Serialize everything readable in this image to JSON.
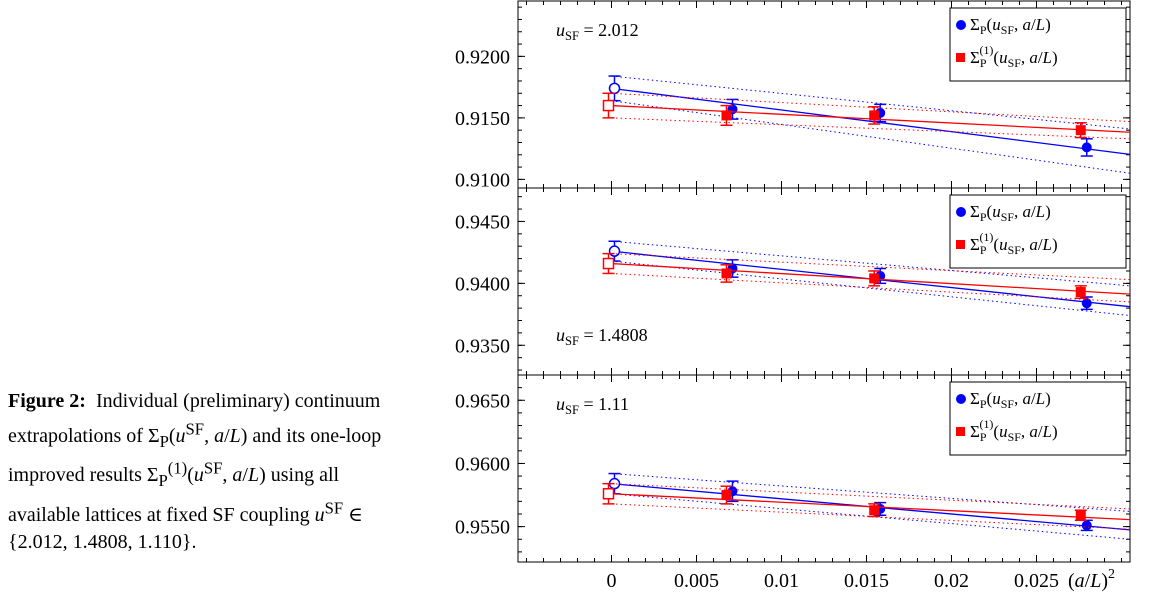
{
  "caption": {
    "label": "Figure 2:",
    "text": "Individual (preliminary) continuum extrapolations of Σ_P(u^SF, a/L) and its one-loop improved results Σ_P^(1)(u^SF, a/L) using all available lattices at fixed SF coupling u^SF ∈ {2.012, 1.4808, 1.110}."
  },
  "chart_data": [
    {
      "type": "scatter",
      "annotation": "u_SF = 2.012",
      "xlabel": "(a/L)^2",
      "xlim": [
        -0.0055,
        0.0305
      ],
      "ylim": [
        0.9093,
        0.9245
      ],
      "xticks": [
        "0",
        "0.005",
        "0.01",
        "0.015",
        "0.02",
        "0.025"
      ],
      "yticks": [
        "0.9100",
        "0.9150",
        "0.9200"
      ],
      "legend_position": "top-right",
      "series": [
        {
          "name": "Σ_P(u_SF, a/L)",
          "color": "#0000ff",
          "marker": "circle",
          "x": [
            0.00694,
            0.01563,
            0.02778
          ],
          "y": [
            0.9157,
            0.9154,
            0.9126
          ],
          "err": [
            0.0008,
            0.0007,
            0.0007
          ],
          "continuum": {
            "x": 0,
            "y": 0.9174,
            "err": 0.001
          },
          "fit": {
            "intercept": 0.9174,
            "slope": -0.176
          },
          "band": {
            "lower_end": 0.9105,
            "upper_end": 0.9141,
            "lower_start": 0.9164,
            "upper_start": 0.9184
          }
        },
        {
          "name": "Σ_P^(1)(u_SF, a/L)",
          "color": "#ff0000",
          "marker": "square",
          "x": [
            0.00694,
            0.01563,
            0.02778
          ],
          "y": [
            0.9152,
            0.9152,
            0.914
          ],
          "err": [
            0.0008,
            0.0007,
            0.0006
          ],
          "continuum": {
            "x": 0,
            "y": 0.916,
            "err": 0.001
          },
          "fit": {
            "intercept": 0.916,
            "slope": -0.071
          },
          "band": {
            "lower_end": 0.9133,
            "upper_end": 0.9147,
            "lower_start": 0.915,
            "upper_start": 0.917
          }
        }
      ]
    },
    {
      "type": "scatter",
      "annotation": "u_SF = 1.4808",
      "xlabel": "(a/L)^2",
      "xlim": [
        -0.0055,
        0.0305
      ],
      "ylim": [
        0.9326,
        0.9477
      ],
      "xticks": [
        "0",
        "0.005",
        "0.01",
        "0.015",
        "0.02",
        "0.025"
      ],
      "yticks": [
        "0.9350",
        "0.9400",
        "0.9450"
      ],
      "legend_position": "top-right",
      "series": [
        {
          "name": "Σ_P(u_SF, a/L)",
          "color": "#0000ff",
          "marker": "circle",
          "x": [
            0.00694,
            0.01563,
            0.02778
          ],
          "y": [
            0.9412,
            0.9406,
            0.9384
          ],
          "err": [
            0.0007,
            0.0006,
            0.0005
          ],
          "continuum": {
            "x": 0,
            "y": 0.9426,
            "err": 0.0008
          },
          "fit": {
            "intercept": 0.9426,
            "slope": -0.147
          },
          "band": {
            "lower_end": 0.9374,
            "upper_end": 0.9398,
            "lower_start": 0.9418,
            "upper_start": 0.9434
          }
        },
        {
          "name": "Σ_P^(1)(u_SF, a/L)",
          "color": "#ff0000",
          "marker": "square",
          "x": [
            0.00694,
            0.01563,
            0.02778
          ],
          "y": [
            0.9408,
            0.9404,
            0.9393
          ],
          "err": [
            0.0007,
            0.0006,
            0.0005
          ],
          "continuum": {
            "x": 0,
            "y": 0.9416,
            "err": 0.0008
          },
          "fit": {
            "intercept": 0.9416,
            "slope": -0.081
          },
          "band": {
            "lower_end": 0.9385,
            "upper_end": 0.9403,
            "lower_start": 0.9408,
            "upper_start": 0.9424
          }
        }
      ]
    },
    {
      "type": "scatter",
      "annotation": "u_SF = 1.11",
      "xlabel": "(a/L)^2",
      "xlim": [
        -0.0055,
        0.0305
      ],
      "ylim": [
        0.9522,
        0.967
      ],
      "xticks": [
        "0",
        "0.005",
        "0.01",
        "0.015",
        "0.02",
        "0.025"
      ],
      "yticks": [
        "0.9550",
        "0.9600",
        "0.9650"
      ],
      "legend_position": "top-right",
      "series": [
        {
          "name": "Σ_P(u_SF, a/L)",
          "color": "#0000ff",
          "marker": "circle",
          "x": [
            0.00694,
            0.01563,
            0.02778
          ],
          "y": [
            0.9578,
            0.9564,
            0.9551
          ],
          "err": [
            0.0008,
            0.0005,
            0.0004
          ],
          "continuum": {
            "x": 0,
            "y": 0.9584,
            "err": 0.0008
          },
          "fit": {
            "intercept": 0.9584,
            "slope": -0.12
          },
          "band": {
            "lower_end": 0.954,
            "upper_end": 0.9562,
            "lower_start": 0.9576,
            "upper_start": 0.9592
          }
        },
        {
          "name": "Σ_P^(1)(u_SF, a/L)",
          "color": "#ff0000",
          "marker": "square",
          "x": [
            0.00694,
            0.01563,
            0.02778
          ],
          "y": [
            0.9575,
            0.9563,
            0.9559
          ],
          "err": [
            0.0007,
            0.0005,
            0.0004
          ],
          "continuum": {
            "x": 0,
            "y": 0.9576,
            "err": 0.0008
          },
          "fit": {
            "intercept": 0.9576,
            "slope": -0.067
          },
          "band": {
            "lower_end": 0.9548,
            "upper_end": 0.9564,
            "lower_start": 0.9568,
            "upper_start": 0.9584
          }
        }
      ]
    }
  ]
}
